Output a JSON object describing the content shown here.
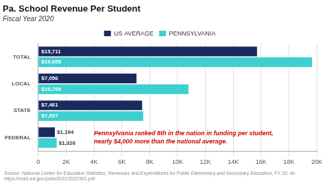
{
  "chart_data": {
    "type": "bar",
    "orientation": "horizontal",
    "title": "Pa. School Revenue Per Student",
    "subtitle": "Fiscal Year 2020",
    "categories": [
      "FEDERAL",
      "STATE",
      "LOCAL",
      "TOTAL"
    ],
    "series": [
      {
        "name": "US AVERAGE",
        "color": "#1b2a5e",
        "values": [
          1194,
          7461,
          7056,
          15711
        ],
        "value_labels": [
          "$1,194",
          "$7,461",
          "$7,056",
          "$15,711"
        ]
      },
      {
        "name": "PENNSYLVANIA",
        "color": "#3ecfcf",
        "values": [
          1326,
          7537,
          10789,
          19655
        ],
        "value_labels": [
          "$1,326",
          "$7,537",
          "$10,789",
          "$19,655"
        ]
      }
    ],
    "data_labels": true,
    "xlim": [
      0,
      20000
    ],
    "xticks": [
      0,
      {
        "value": 2000,
        "label": "2K"
      },
      {
        "value": 4000,
        "label": "4K"
      },
      {
        "value": 6000,
        "label": "6K"
      },
      {
        "value": 8000,
        "label": "8K"
      },
      {
        "value": 10000,
        "label": "10K"
      },
      {
        "value": 12000,
        "label": "12K"
      },
      {
        "value": 14000,
        "label": "14K"
      },
      {
        "value": 16000,
        "label": "16K"
      },
      {
        "value": 18000,
        "label": "18K"
      },
      {
        "value": 20000,
        "label": "20K"
      }
    ],
    "grid": true,
    "legend": "top",
    "annotations": [
      {
        "text": "Pennsylvania ranked 8th in the nation in funding per student,\nnearly $4,000 more than the national average.",
        "color": "#cc0000"
      }
    ],
    "source": "Source: National Center for Education Statistics, Revenues and Expenditures for Public Elementary and Secondary Education, FY 20. At: https://nces.ed.gov/pubs2022/2022301.pdf"
  }
}
